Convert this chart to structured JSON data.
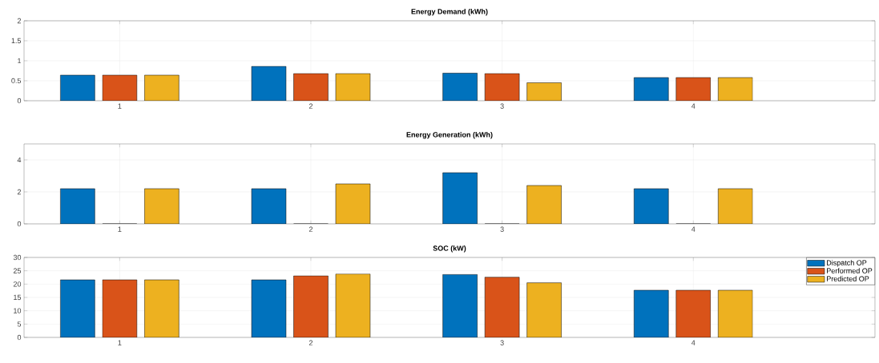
{
  "chart_data": [
    {
      "type": "bar",
      "title": "Energy Demand (kWh)",
      "x": [
        1,
        2,
        3,
        4
      ],
      "xlim": [
        0.5,
        4.95
      ],
      "xticks": [
        1,
        2,
        3,
        4
      ],
      "ylim": [
        0,
        2
      ],
      "yticks": [
        0,
        0.5,
        1,
        1.5,
        2
      ],
      "grid": true,
      "series": [
        {
          "color": "#0072bd",
          "values": [
            0.64,
            0.86,
            0.69,
            0.58
          ]
        },
        {
          "color": "#d95319",
          "values": [
            0.64,
            0.68,
            0.68,
            0.58
          ]
        },
        {
          "color": "#edb120",
          "values": [
            0.64,
            0.68,
            0.45,
            0.58
          ]
        }
      ]
    },
    {
      "type": "bar",
      "title": "Energy Generation (kWh)",
      "x": [
        1,
        2,
        3,
        4
      ],
      "xlim": [
        0.5,
        4.95
      ],
      "xticks": [
        1,
        2,
        3,
        4
      ],
      "ylim": [
        0,
        5
      ],
      "yticks": [
        0,
        2,
        4
      ],
      "grid": true,
      "series": [
        {
          "color": "#0072bd",
          "values": [
            2.2,
            2.2,
            3.2,
            2.2
          ]
        },
        {
          "color": "#d95319",
          "values": [
            0,
            0,
            0,
            0
          ]
        },
        {
          "color": "#edb120",
          "values": [
            2.2,
            2.5,
            2.4,
            2.2
          ]
        }
      ]
    },
    {
      "type": "bar",
      "title": "SOC (kW)",
      "x": [
        1,
        2,
        3,
        4
      ],
      "xlim": [
        0.5,
        4.95
      ],
      "xticks": [
        1,
        2,
        3,
        4
      ],
      "ylim": [
        0,
        30
      ],
      "yticks": [
        0,
        5,
        10,
        15,
        20,
        25,
        30
      ],
      "grid": true,
      "legend": "top right",
      "series": [
        {
          "name": "Dispatch OP",
          "color": "#0072bd",
          "values": [
            21.6,
            21.6,
            23.6,
            17.7
          ]
        },
        {
          "name": "Performed OP",
          "color": "#d95319",
          "values": [
            21.6,
            23.1,
            22.6,
            17.7
          ]
        },
        {
          "name": "Predicted OP",
          "color": "#edb120",
          "values": [
            21.6,
            23.8,
            20.5,
            17.7
          ]
        }
      ]
    }
  ]
}
